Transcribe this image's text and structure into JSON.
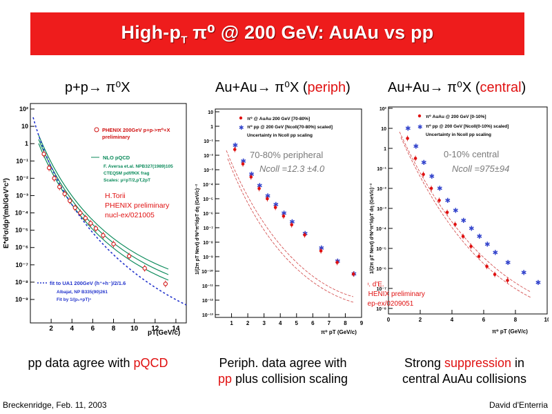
{
  "title": {
    "main": "High-p",
    "sub": "T",
    "rest": " π⁰ @ 200 GeV: AuAu vs pp"
  },
  "headers": {
    "h1": "p+p→ π⁰X",
    "h2_main": "Au+Au→ π⁰X (",
    "h2_red": "periph",
    "h2_end": ")",
    "h3_main": "Au+Au→ π⁰X (",
    "h3_red": "central",
    "h3_end": ")"
  },
  "plot1": {
    "ylabel": "E*d³σ/dp³(mb/GeV³c³)",
    "xlabel": "pT(GeV/c)",
    "yticks": [
      "10²",
      "10",
      "1",
      "10⁻¹",
      "10⁻²",
      "10⁻³",
      "10⁻⁴",
      "10⁻⁵",
      "10⁻⁶",
      "10⁻⁷",
      "10⁻⁸",
      "10⁻⁹"
    ],
    "xticks": [
      "2",
      "4",
      "6",
      "8",
      "10",
      "12",
      "14"
    ],
    "legend1": "PHENIX 200GeV p+p->π⁰+X",
    "legend1b": "preliminary",
    "legend2": "NLO pQCD",
    "legend2a": "F. Aversa et.al. NPB327(1989)105",
    "legend2b": "CTEQ5M pdf/fKK frag",
    "legend2c": "Scales: μ=pT/2,pT,2pT",
    "author1": "H.Torii",
    "author2": "PHENIX preliminary",
    "author3": "nucl-ex/021005",
    "fit1": "fit to UA1 200GeV (h⁺+h⁻)/2/1.6",
    "fit2": "Albajat, NP B335(90)261",
    "fit3": "Fit by 1/(p₀+pT)ⁿ"
  },
  "plot2": {
    "ylabel": "1/(2π pT Nevt) d²N^π⁰/dpT dη (GeV/c)⁻²",
    "xlabel": "π⁰ pT (GeV/c)",
    "yticks": [
      "10",
      "1",
      "10⁻¹",
      "10⁻²",
      "10⁻³",
      "10⁻⁴",
      "10⁻⁵",
      "10⁻⁶",
      "10⁻⁷",
      "10⁻⁸",
      "10⁻⁹",
      "10⁻¹⁰",
      "10⁻¹¹",
      "10⁻¹²",
      "10⁻¹³"
    ],
    "xticks": [
      "1",
      "2",
      "3",
      "4",
      "5",
      "6",
      "7",
      "8",
      "9"
    ],
    "legend1": "π⁰ @ AuAu 200 GeV [70-80%]",
    "legend2": "π⁰ pp @ 200 GeV [Ncoll(70-80%) scaled]",
    "legend3": "Uncertainty in Ncoll pp scaling",
    "centrality": "70-80% peripheral",
    "ncoll": "Ncoll =12.3 ±4.0"
  },
  "plot3": {
    "ylabel": "1/(2π pT Nevt) d²N^π⁰/dpT dη (GeV/c)⁻²",
    "xlabel": "π⁰ pT (GeV/c)",
    "yticks": [
      "10²",
      "10",
      "1",
      "10⁻¹",
      "10⁻²",
      "10⁻³",
      "10⁻⁴",
      "10⁻⁵",
      "10⁻⁶",
      "10⁻⁷",
      "10⁻⁸"
    ],
    "xticks": [
      "0",
      "2",
      "4",
      "6",
      "8",
      "10"
    ],
    "legend1": "π⁰ AuAu @ 200 GeV [0-10%]",
    "legend2": "π⁰ pp @ 200 GeV [Ncoll(0-10%) scaled]",
    "legend3": "Uncertainty in Ncoll pp scaling",
    "centrality": "0-10% central",
    "ncoll": "Ncoll =975±94",
    "author1": "D. d'E.",
    "author2": "PHENIX preliminary",
    "author3": "hep-ex/0209051"
  },
  "captions": {
    "c1_main": "pp data agree with ",
    "c1_red": "pQCD",
    "c2_line1": "Periph. data agree with",
    "c2_red": "pp",
    "c2_rest": " plus collision scaling",
    "c3_main": "Strong ",
    "c3_red": "suppression",
    "c3_rest": " in",
    "c3_line2": "central AuAu collisions"
  },
  "footer": {
    "left": "Breckenridge, Feb. 11, 2003",
    "right": "David d'Enterria"
  },
  "chart_data": [
    {
      "type": "scatter",
      "xlabel": "pT(GeV/c)",
      "ylabel": "E*d³σ/dp³(mb/GeV³c³)",
      "xlim": [
        0,
        15
      ],
      "ylim_log10": [
        -10,
        2
      ],
      "series": [
        {
          "name": "PHENIX 200GeV p+p->π⁰+X",
          "x": [
            1.3,
            1.8,
            2.3,
            2.8,
            3.3,
            3.8,
            4.3,
            4.8,
            5.3,
            5.8,
            6.3,
            7,
            8,
            9.5,
            11,
            13
          ],
          "log10y": [
            -0.6,
            -1.4,
            -2.0,
            -2.5,
            -2.9,
            -3.3,
            -3.7,
            -4.0,
            -4.3,
            -4.6,
            -4.9,
            -5.3,
            -5.8,
            -6.5,
            -7.2,
            -8.1
          ]
        }
      ]
    },
    {
      "type": "scatter",
      "xlabel": "π⁰ pT (GeV/c)",
      "xlim": [
        0,
        9
      ],
      "ylim_log10": [
        -13,
        1
      ],
      "series": [
        {
          "name": "π⁰ @ AuAu 200 GeV [70-80%]",
          "x": [
            1.2,
            1.7,
            2.2,
            2.7,
            3.2,
            3.7,
            4.2,
            4.7,
            5.5,
            6.5,
            7.5,
            8.5
          ],
          "log10y": [
            -1.6,
            -2.6,
            -3.5,
            -4.3,
            -5.0,
            -5.6,
            -6.2,
            -6.8,
            -7.5,
            -8.6,
            -9.4,
            -10.2
          ]
        },
        {
          "name": "π⁰ pp @ 200 GeV [Ncoll(70-80%) scaled]",
          "x": [
            1.2,
            1.7,
            2.2,
            2.7,
            3.2,
            3.7,
            4.2,
            4.7,
            5.5,
            6.5,
            7.5,
            8.5
          ],
          "log10y": [
            -1.3,
            -2.4,
            -3.3,
            -4.1,
            -4.8,
            -5.4,
            -6.0,
            -6.6,
            -7.4,
            -8.4,
            -9.3,
            -10.2
          ]
        }
      ]
    },
    {
      "type": "scatter",
      "xlabel": "π⁰ pT (GeV/c)",
      "xlim": [
        0,
        10
      ],
      "ylim_log10": [
        -8,
        2
      ],
      "series": [
        {
          "name": "π⁰ AuAu @ 200 GeV [0-10%]",
          "x": [
            1.2,
            1.7,
            2.2,
            2.7,
            3.2,
            3.7,
            4.2,
            4.7,
            5.2,
            5.7,
            6.2,
            6.7,
            7.5
          ],
          "log10y": [
            0.5,
            -0.5,
            -1.3,
            -2.0,
            -2.6,
            -3.2,
            -3.8,
            -4.4,
            -4.9,
            -5.4,
            -5.9,
            -6.3,
            -6.6
          ]
        },
        {
          "name": "π⁰ pp @ 200 GeV [Ncoll(0-10%) scaled]",
          "x": [
            1.2,
            1.7,
            2.2,
            2.7,
            3.2,
            3.7,
            4.2,
            4.7,
            5.2,
            5.7,
            6.2,
            6.7,
            7.5,
            8.5,
            9.4
          ],
          "log10y": [
            1.0,
            0.1,
            -0.7,
            -1.4,
            -2.0,
            -2.6,
            -3.1,
            -3.6,
            -4.0,
            -4.4,
            -4.8,
            -5.2,
            -5.7,
            -6.2,
            -6.7
          ]
        }
      ]
    }
  ]
}
